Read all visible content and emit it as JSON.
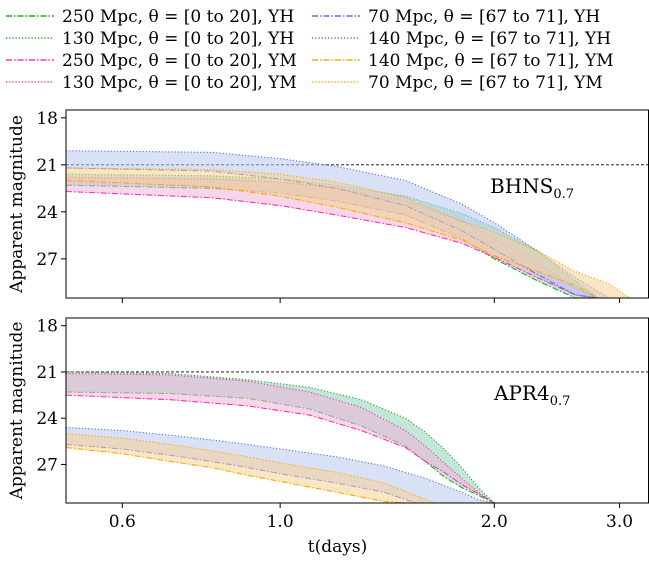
{
  "chart_data": {
    "type": "line",
    "shared_xlabel": "t(days)",
    "x_scale": "log",
    "xlim": [
      0.5,
      3.3
    ],
    "x_ticks": [
      0.6,
      1.0,
      2.0,
      3.0
    ],
    "x_tick_labels": [
      "0.6",
      "1.0",
      "2.0",
      "3.0"
    ],
    "legend": {
      "placement": "top (outside, above panels), two columns",
      "entries": [
        {
          "label": "250 Mpc, θ = [0 to 20], YH",
          "color": "#22aa22",
          "dash": "dash-dot"
        },
        {
          "label": "130 Mpc, θ = [0 to 20], YH",
          "color": "#22aa22",
          "dash": "dotted"
        },
        {
          "label": "250 Mpc, θ = [0 to 20], YM",
          "color": "#ff33aa",
          "dash": "dash-dot"
        },
        {
          "label": "130 Mpc, θ = [0 to 20], YM",
          "color": "#ff33aa",
          "dash": "dotted"
        },
        {
          "label": "70 Mpc, θ = [67 to 71], YH",
          "color": "#5577dd",
          "dash": "dash-dot"
        },
        {
          "label": "140 Mpc, θ = [67 to 71], YH",
          "color": "#5577dd",
          "dash": "dotted"
        },
        {
          "label": "140 Mpc, θ = [67 to 71], YM",
          "color": "#ffaa00",
          "dash": "dash-dot"
        },
        {
          "label": "70 Mpc, θ = [67 to 71], YM",
          "color": "#ffaa00",
          "dash": "dotted"
        }
      ]
    },
    "panels": [
      {
        "annotation": "BHNS",
        "annotation_sub": "0.7",
        "ylabel": "Apparent magnitude",
        "ylim": [
          29.5,
          17.5
        ],
        "y_ticks": [
          18,
          21,
          24,
          27
        ],
        "threshold": 21,
        "bands": [
          {
            "color": "#22aa22",
            "fill": "#8fd4b8",
            "upper": [
              [
                0.5,
                21.6
              ],
              [
                0.8,
                21.7
              ],
              [
                1.0,
                21.9
              ],
              [
                1.2,
                22.3
              ],
              [
                1.5,
                23.0
              ],
              [
                1.8,
                24.1
              ],
              [
                2.0,
                25.0
              ],
              [
                2.3,
                26.5
              ],
              [
                2.6,
                28.4
              ],
              [
                2.8,
                29.5
              ]
            ],
            "lower": [
              [
                0.5,
                22.3
              ],
              [
                0.8,
                22.5
              ],
              [
                1.0,
                22.8
              ],
              [
                1.2,
                23.3
              ],
              [
                1.5,
                24.2
              ],
              [
                1.8,
                25.7
              ],
              [
                2.0,
                27.0
              ],
              [
                2.3,
                28.4
              ],
              [
                2.6,
                29.5
              ]
            ]
          },
          {
            "color": "#ff33aa",
            "fill": "#f0b4dc",
            "upper": [
              [
                0.5,
                21.8
              ],
              [
                0.8,
                21.9
              ],
              [
                1.0,
                22.1
              ],
              [
                1.2,
                22.5
              ],
              [
                1.5,
                23.3
              ],
              [
                1.8,
                24.6
              ],
              [
                2.0,
                25.7
              ],
              [
                2.3,
                27.3
              ],
              [
                2.6,
                28.9
              ],
              [
                2.8,
                29.5
              ]
            ],
            "lower": [
              [
                0.5,
                22.7
              ],
              [
                0.8,
                23.1
              ],
              [
                1.0,
                23.6
              ],
              [
                1.2,
                24.2
              ],
              [
                1.5,
                25.0
              ],
              [
                1.8,
                26.0
              ],
              [
                2.0,
                26.9
              ],
              [
                2.3,
                28.2
              ],
              [
                2.6,
                29.3
              ],
              [
                2.8,
                29.5
              ]
            ]
          },
          {
            "color": "#5577dd",
            "fill": "#b9c8f0",
            "upper": [
              [
                0.5,
                20.1
              ],
              [
                0.8,
                20.2
              ],
              [
                1.0,
                20.6
              ],
              [
                1.2,
                21.1
              ],
              [
                1.5,
                22.0
              ],
              [
                1.8,
                23.5
              ],
              [
                2.0,
                24.7
              ],
              [
                2.3,
                26.5
              ],
              [
                2.6,
                28.2
              ],
              [
                2.9,
                29.5
              ]
            ],
            "lower": [
              [
                0.5,
                21.2
              ],
              [
                0.8,
                21.4
              ],
              [
                1.0,
                21.9
              ],
              [
                1.2,
                22.5
              ],
              [
                1.5,
                23.6
              ],
              [
                1.8,
                25.2
              ],
              [
                2.0,
                26.4
              ],
              [
                2.3,
                28.0
              ],
              [
                2.6,
                29.3
              ],
              [
                2.8,
                29.5
              ]
            ]
          },
          {
            "color": "#ffaa00",
            "fill": "#f5cf96",
            "upper": [
              [
                0.5,
                21.2
              ],
              [
                0.8,
                21.3
              ],
              [
                1.0,
                21.6
              ],
              [
                1.2,
                22.1
              ],
              [
                1.5,
                23.1
              ],
              [
                1.8,
                24.6
              ],
              [
                2.0,
                25.3
              ],
              [
                2.3,
                26.5
              ],
              [
                2.6,
                27.8
              ],
              [
                2.9,
                28.6
              ],
              [
                3.1,
                29.5
              ]
            ],
            "lower": [
              [
                0.5,
                22.0
              ],
              [
                0.8,
                22.4
              ],
              [
                1.0,
                23.0
              ],
              [
                1.2,
                23.7
              ],
              [
                1.5,
                24.7
              ],
              [
                1.8,
                25.8
              ],
              [
                2.0,
                26.8
              ],
              [
                2.3,
                27.8
              ],
              [
                2.6,
                28.7
              ],
              [
                2.8,
                29.5
              ]
            ]
          }
        ]
      },
      {
        "annotation": "APR4",
        "annotation_sub": "0.7",
        "ylabel": "Apparent magnitude",
        "ylim": [
          29.5,
          17.5
        ],
        "y_ticks": [
          18,
          21,
          24,
          27
        ],
        "threshold": 21,
        "bands": [
          {
            "color": "#22aa22",
            "fill": "#8fd4b8",
            "upper": [
              [
                0.5,
                21.0
              ],
              [
                0.7,
                21.1
              ],
              [
                0.9,
                21.5
              ],
              [
                1.1,
                22.0
              ],
              [
                1.3,
                22.8
              ],
              [
                1.5,
                24.0
              ],
              [
                1.6,
                24.9
              ],
              [
                1.7,
                26.0
              ],
              [
                1.8,
                27.2
              ],
              [
                1.9,
                28.5
              ],
              [
                2.0,
                29.5
              ]
            ],
            "lower": [
              [
                0.5,
                22.3
              ],
              [
                0.7,
                22.4
              ],
              [
                0.9,
                22.7
              ],
              [
                1.1,
                23.4
              ],
              [
                1.3,
                24.5
              ],
              [
                1.5,
                25.8
              ],
              [
                1.6,
                26.8
              ],
              [
                1.7,
                27.8
              ],
              [
                1.8,
                28.5
              ],
              [
                1.9,
                29.0
              ],
              [
                2.0,
                29.5
              ]
            ]
          },
          {
            "color": "#ff33aa",
            "fill": "#f0b4dc",
            "upper": [
              [
                0.5,
                21.1
              ],
              [
                0.7,
                21.2
              ],
              [
                0.9,
                21.6
              ],
              [
                1.1,
                22.3
              ],
              [
                1.3,
                23.3
              ],
              [
                1.5,
                24.8
              ],
              [
                1.6,
                25.8
              ],
              [
                1.7,
                26.9
              ],
              [
                1.8,
                27.9
              ],
              [
                1.9,
                28.8
              ],
              [
                2.0,
                29.5
              ]
            ],
            "lower": [
              [
                0.5,
                22.5
              ],
              [
                0.7,
                22.8
              ],
              [
                0.9,
                23.2
              ],
              [
                1.1,
                23.8
              ],
              [
                1.3,
                24.8
              ],
              [
                1.5,
                25.9
              ],
              [
                1.6,
                26.8
              ],
              [
                1.7,
                27.5
              ],
              [
                1.8,
                28.3
              ],
              [
                1.9,
                28.9
              ],
              [
                2.0,
                29.5
              ]
            ]
          },
          {
            "color": "#5577dd",
            "fill": "#b9c8f0",
            "upper": [
              [
                0.5,
                24.6
              ],
              [
                0.6,
                24.8
              ],
              [
                0.7,
                25.1
              ],
              [
                0.8,
                25.4
              ],
              [
                0.9,
                25.7
              ],
              [
                1.0,
                26.0
              ],
              [
                1.2,
                26.5
              ],
              [
                1.4,
                27.1
              ],
              [
                1.6,
                27.9
              ],
              [
                1.8,
                28.8
              ],
              [
                1.9,
                29.3
              ],
              [
                2.0,
                29.5
              ]
            ],
            "lower": [
              [
                0.5,
                25.7
              ],
              [
                0.6,
                26.0
              ],
              [
                0.7,
                26.4
              ],
              [
                0.8,
                26.8
              ],
              [
                0.9,
                27.2
              ],
              [
                1.0,
                27.6
              ],
              [
                1.2,
                28.2
              ],
              [
                1.4,
                28.8
              ],
              [
                1.55,
                29.5
              ]
            ]
          },
          {
            "color": "#ffaa00",
            "fill": "#f5cf96",
            "upper": [
              [
                0.5,
                25.0
              ],
              [
                0.6,
                25.3
              ],
              [
                0.7,
                25.7
              ],
              [
                0.8,
                26.1
              ],
              [
                0.9,
                26.5
              ],
              [
                1.0,
                26.9
              ],
              [
                1.2,
                27.5
              ],
              [
                1.4,
                28.2
              ],
              [
                1.55,
                29.0
              ],
              [
                1.65,
                29.5
              ]
            ],
            "lower": [
              [
                0.5,
                25.9
              ],
              [
                0.6,
                26.3
              ],
              [
                0.7,
                26.8
              ],
              [
                0.8,
                27.2
              ],
              [
                0.9,
                27.7
              ],
              [
                1.0,
                28.1
              ],
              [
                1.2,
                28.8
              ],
              [
                1.4,
                29.4
              ],
              [
                1.5,
                29.5
              ]
            ]
          }
        ]
      }
    ]
  }
}
